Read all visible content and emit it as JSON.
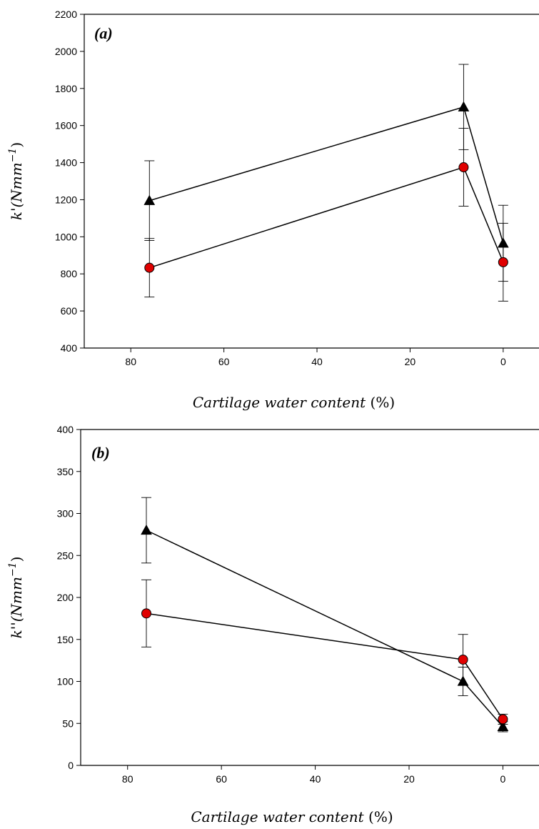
{
  "chart_data": [
    {
      "type": "line",
      "panel_label": "(a)",
      "ylabel": "k'(Nmm",
      "ylabel_sup": "−1",
      "ylabel_close": ")",
      "xlabel": "Cartilage water content",
      "xlabel_unit": "(%)",
      "xlim": [
        90,
        -8
      ],
      "ylim": [
        400,
        2200
      ],
      "x_ticks": [
        80,
        60,
        40,
        20,
        0
      ],
      "y_ticks": [
        400,
        600,
        800,
        1000,
        1200,
        1400,
        1600,
        1800,
        2000,
        2200
      ],
      "grid": false,
      "x": [
        76,
        8.5,
        0
      ],
      "series": [
        {
          "marker": "triangle",
          "color": "#000000",
          "values": [
            1195,
            1700,
            965
          ],
          "errors": [
            215,
            230,
            205
          ]
        },
        {
          "marker": "circle",
          "color": "#e00000",
          "values": [
            833,
            1375,
            863
          ],
          "errors": [
            158,
            210,
            210
          ]
        }
      ]
    },
    {
      "type": "line",
      "panel_label": "(b)",
      "ylabel": "k''(Nmm",
      "ylabel_sup": "−1",
      "ylabel_close": ")",
      "xlabel": "Cartilage water content",
      "xlabel_unit": "(%)",
      "xlim": [
        90,
        -8
      ],
      "ylim": [
        0,
        400
      ],
      "x_ticks": [
        80,
        60,
        40,
        20,
        0
      ],
      "y_ticks": [
        0,
        50,
        100,
        150,
        200,
        250,
        300,
        350,
        400
      ],
      "grid": false,
      "x": [
        76,
        8.5,
        0
      ],
      "series": [
        {
          "marker": "triangle",
          "color": "#000000",
          "values": [
            280,
            100,
            46
          ],
          "errors": [
            39,
            17,
            6
          ]
        },
        {
          "marker": "circle",
          "color": "#e00000",
          "values": [
            181,
            126,
            55
          ],
          "errors": [
            40,
            30,
            6
          ]
        }
      ]
    }
  ]
}
